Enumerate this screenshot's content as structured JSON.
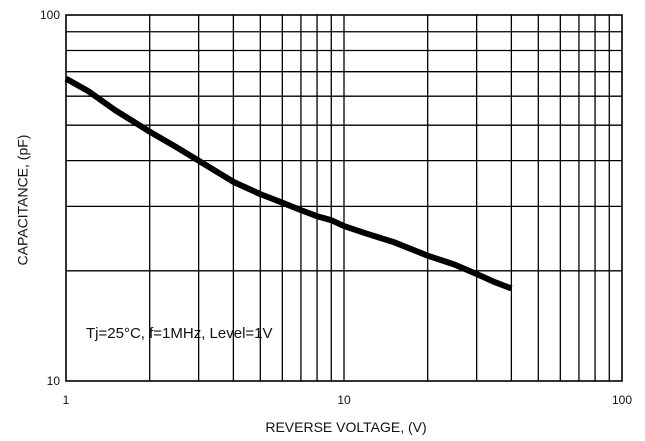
{
  "chart_data": {
    "type": "line",
    "title": "",
    "xlabel": "REVERSE VOLTAGE, (V)",
    "ylabel": "CAPACITANCE, (pF)",
    "xscale": "log",
    "yscale": "log",
    "xlim": [
      1,
      100
    ],
    "ylim": [
      10,
      100
    ],
    "grid": true,
    "x_ticks": [
      {
        "value": 1,
        "label": "1"
      },
      {
        "value": 10,
        "label": "10"
      },
      {
        "value": 100,
        "label": "100"
      }
    ],
    "y_ticks": [
      {
        "value": 10,
        "label": "10"
      },
      {
        "value": 100,
        "label": "100"
      }
    ],
    "annotation": "Tj=25°C, f=1MHz, Level=1V",
    "series": [
      {
        "x": [
          1,
          1.2,
          1.5,
          2,
          2.5,
          3,
          4,
          5,
          6,
          7,
          8,
          9,
          10,
          12,
          15,
          20,
          25,
          30,
          35,
          40
        ],
        "y": [
          67,
          62,
          55,
          48,
          43.5,
          40,
          35,
          32.4,
          30.7,
          29.3,
          28.2,
          27.5,
          26.5,
          25.3,
          24,
          22,
          20.8,
          19.6,
          18.6,
          17.9
        ]
      }
    ],
    "line_color": "#000000"
  }
}
